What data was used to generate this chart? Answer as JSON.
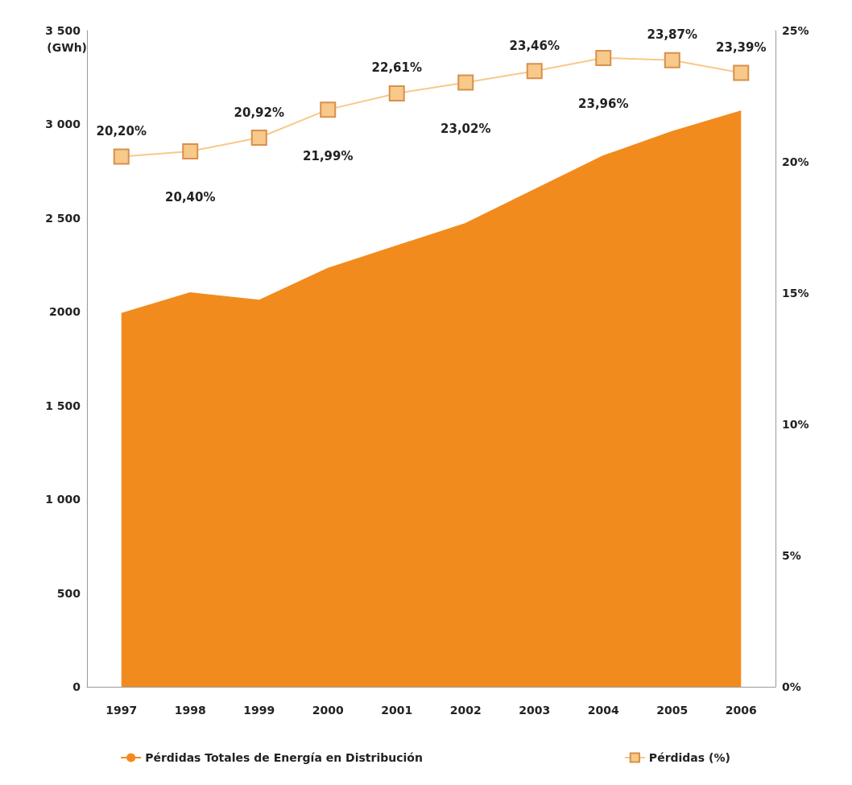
{
  "chart_data": {
    "type": "area",
    "ylabel": "(GWh)",
    "categories": [
      "1997",
      "1998",
      "1999",
      "2000",
      "2001",
      "2002",
      "2003",
      "2004",
      "2005",
      "2006"
    ],
    "series": [
      {
        "name": "Pérdidas Totales de Energía en Distribución",
        "color": "#f28b1e",
        "values": [
          1990,
          2100,
          2060,
          2230,
          2350,
          2470,
          2650,
          2830,
          2960,
          3070
        ]
      },
      {
        "name": "Pérdidas (%)",
        "type": "line",
        "axis": "y2",
        "color": "#f7c98a",
        "marker": "square",
        "values": [
          20.2,
          20.4,
          20.92,
          21.99,
          22.61,
          23.02,
          23.46,
          23.96,
          23.87,
          23.39
        ],
        "value_labels": [
          "20,20%",
          "20,40%",
          "20,92%",
          "21,99%",
          "22,61%",
          "23,02%",
          "23,46%",
          "23,96%",
          "23,87%",
          "23,39%"
        ]
      }
    ],
    "ylim": [
      0,
      3500
    ],
    "yticks": [
      0,
      500,
      {
        "value": 1000,
        "label": "1 000"
      },
      {
        "value": 1500,
        "label": "1 500"
      },
      {
        "value": 2000,
        "label": "2000"
      },
      {
        "value": 2500,
        "label": "2 500"
      },
      {
        "value": 3000,
        "label": "3 000"
      },
      {
        "value": 3500,
        "label": "3 500"
      }
    ],
    "y2lim": [
      0,
      25
    ],
    "y2ticks": [
      {
        "value": 0,
        "label": "0%"
      },
      {
        "value": 5,
        "label": "5%"
      },
      {
        "value": 10,
        "label": "10%"
      },
      {
        "value": 15,
        "label": "15%"
      },
      {
        "value": 20,
        "label": "20%"
      },
      {
        "value": 25,
        "label": "25%"
      }
    ],
    "legend": "bottom"
  }
}
